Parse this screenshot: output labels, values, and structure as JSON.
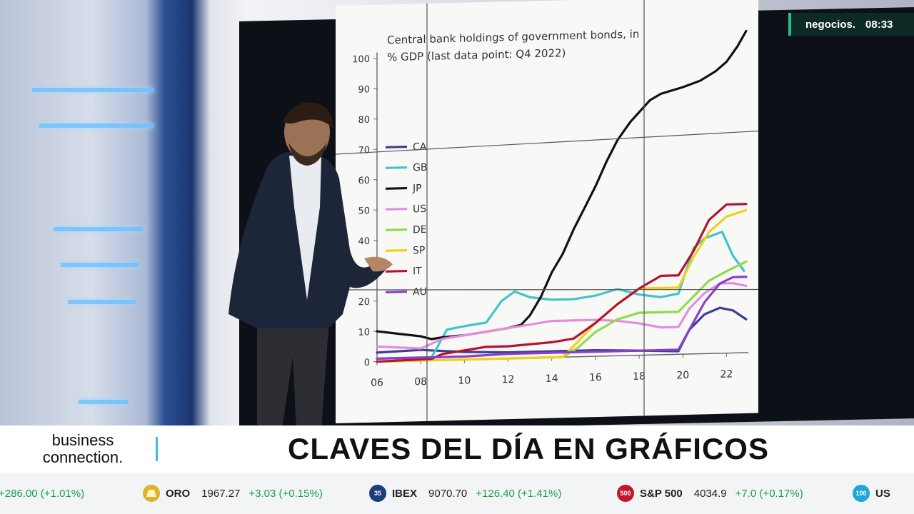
{
  "channel": {
    "name": "negocios.",
    "time": "08:33"
  },
  "program": {
    "logo_line1": "business",
    "logo_line2": "connection.",
    "headline": "CLAVES DEL DÍA EN GRÁFICOS"
  },
  "ticker": [
    {
      "symbol": "",
      "value": "",
      "change": "+286.00 (+1.01%)",
      "badge": "",
      "badge_color": ""
    },
    {
      "symbol": "ORO",
      "value": "1967.27",
      "change": "+3.03 (+0.15%)",
      "badge": "",
      "badge_color": "#e0b22a"
    },
    {
      "symbol": "IBEX",
      "value": "9070.70",
      "change": "+126.40 (+1.41%)",
      "badge": "35",
      "badge_color": "#1c3d7a"
    },
    {
      "symbol": "S&P 500",
      "value": "4034.9",
      "change": "+7.0 (+0.17%)",
      "badge": "500",
      "badge_color": "#c0182a"
    },
    {
      "symbol": "US",
      "value": "",
      "change": "",
      "badge": "100",
      "badge_color": "#1ea7d8"
    }
  ],
  "colors": {
    "ticker_up": "#1a9e4b",
    "accent": "#3bb9f0"
  },
  "chart_data": {
    "type": "line",
    "title": "Central bank holdings of government bonds, in % GDP (last data point: Q4 2022)",
    "xlabel": "",
    "ylabel": "",
    "xlim": [
      2006,
      2023
    ],
    "ylim": [
      0,
      100
    ],
    "x_ticks": [
      "06",
      "08",
      "10",
      "12",
      "14",
      "16",
      "18",
      "20",
      "22"
    ],
    "y_ticks": [
      "0",
      "10",
      "20",
      "30",
      "40",
      "50",
      "60",
      "70",
      "80",
      "90",
      "100"
    ],
    "legend_position": "left",
    "grid": false,
    "series": [
      {
        "name": "CA",
        "color": "#3b3f8f",
        "points": [
          [
            2006,
            3
          ],
          [
            2008,
            3.5
          ],
          [
            2010,
            2.5
          ],
          [
            2012,
            2
          ],
          [
            2014,
            2
          ],
          [
            2016,
            2
          ],
          [
            2018,
            1.5
          ],
          [
            2019.8,
            1
          ],
          [
            2020.3,
            8
          ],
          [
            2021,
            13
          ],
          [
            2021.7,
            15
          ],
          [
            2022.3,
            14
          ],
          [
            2022.9,
            11
          ]
        ]
      },
      {
        "name": "GB",
        "color": "#3fc5c9",
        "points": [
          [
            2006,
            1
          ],
          [
            2008.5,
            1
          ],
          [
            2009.2,
            10
          ],
          [
            2010,
            11
          ],
          [
            2011,
            12
          ],
          [
            2011.7,
            19
          ],
          [
            2012.3,
            22
          ],
          [
            2013,
            20
          ],
          [
            2014,
            19
          ],
          [
            2015,
            19
          ],
          [
            2016,
            20
          ],
          [
            2017,
            22
          ],
          [
            2018,
            20
          ],
          [
            2019,
            19
          ],
          [
            2019.8,
            20
          ],
          [
            2020.5,
            35
          ],
          [
            2021,
            38
          ],
          [
            2021.8,
            40
          ],
          [
            2022.3,
            32
          ],
          [
            2022.8,
            27
          ]
        ]
      },
      {
        "name": "JP",
        "color": "#111111",
        "points": [
          [
            2006,
            10
          ],
          [
            2007,
            9
          ],
          [
            2008,
            8
          ],
          [
            2008.5,
            7
          ],
          [
            2009,
            7.5
          ],
          [
            2010,
            8
          ],
          [
            2011,
            9
          ],
          [
            2012,
            10
          ],
          [
            2012.6,
            11
          ],
          [
            2013,
            14
          ],
          [
            2013.5,
            20
          ],
          [
            2014,
            28
          ],
          [
            2014.5,
            34
          ],
          [
            2015,
            42
          ],
          [
            2015.5,
            49
          ],
          [
            2016,
            56
          ],
          [
            2016.5,
            64
          ],
          [
            2017,
            71
          ],
          [
            2017.6,
            77
          ],
          [
            2018.5,
            84
          ],
          [
            2019,
            86
          ],
          [
            2020,
            88
          ],
          [
            2020.8,
            90
          ],
          [
            2021.5,
            93
          ],
          [
            2022,
            96
          ],
          [
            2022.5,
            101
          ],
          [
            2022.9,
            106
          ]
        ]
      },
      {
        "name": "US",
        "color": "#e38de0",
        "points": [
          [
            2006,
            5
          ],
          [
            2008,
            4
          ],
          [
            2009,
            7
          ],
          [
            2010,
            8
          ],
          [
            2011,
            9
          ],
          [
            2012,
            10
          ],
          [
            2013,
            11
          ],
          [
            2014,
            12
          ],
          [
            2015,
            12
          ],
          [
            2016,
            12
          ],
          [
            2017,
            11.5
          ],
          [
            2018,
            10.5
          ],
          [
            2019,
            9
          ],
          [
            2019.8,
            9
          ],
          [
            2020.3,
            15
          ],
          [
            2021,
            20
          ],
          [
            2021.7,
            23
          ],
          [
            2022.3,
            23
          ],
          [
            2022.9,
            22
          ]
        ]
      },
      {
        "name": "DE",
        "color": "#8fdc4a",
        "points": [
          [
            2006,
            0
          ],
          [
            2014.5,
            0
          ],
          [
            2015.2,
            3
          ],
          [
            2016,
            8
          ],
          [
            2017,
            12
          ],
          [
            2018,
            14
          ],
          [
            2019,
            14
          ],
          [
            2019.8,
            14
          ],
          [
            2020.5,
            19
          ],
          [
            2021.2,
            24
          ],
          [
            2022,
            27
          ],
          [
            2022.9,
            30
          ]
        ]
      },
      {
        "name": "SP",
        "color": "#f2cf19",
        "points": [
          [
            2006,
            0
          ],
          [
            2014.5,
            0
          ],
          [
            2015.2,
            5
          ],
          [
            2016,
            11
          ],
          [
            2017,
            17
          ],
          [
            2018,
            22
          ],
          [
            2019,
            22
          ],
          [
            2019.8,
            22
          ],
          [
            2020.5,
            32
          ],
          [
            2021.2,
            40
          ],
          [
            2022,
            45
          ],
          [
            2022.9,
            47
          ]
        ]
      },
      {
        "name": "IT",
        "color": "#b4122e",
        "points": [
          [
            2006,
            0
          ],
          [
            2008.5,
            0.5
          ],
          [
            2009,
            2
          ],
          [
            2010,
            3
          ],
          [
            2011,
            4
          ],
          [
            2012,
            4
          ],
          [
            2013,
            4.5
          ],
          [
            2014,
            5
          ],
          [
            2015,
            6
          ],
          [
            2016,
            11
          ],
          [
            2017,
            17
          ],
          [
            2018,
            22
          ],
          [
            2019,
            26
          ],
          [
            2019.8,
            26
          ],
          [
            2020.5,
            34
          ],
          [
            2021.2,
            44
          ],
          [
            2022,
            49
          ],
          [
            2022.9,
            49
          ]
        ]
      },
      {
        "name": "AU",
        "color": "#8a3fc8",
        "points": [
          [
            2006,
            1
          ],
          [
            2008,
            1
          ],
          [
            2010,
            1
          ],
          [
            2012,
            1.5
          ],
          [
            2014,
            1.5
          ],
          [
            2016,
            1.5
          ],
          [
            2018,
            1.5
          ],
          [
            2019.8,
            1.5
          ],
          [
            2020.3,
            8
          ],
          [
            2021,
            17
          ],
          [
            2021.7,
            23
          ],
          [
            2022.3,
            25
          ],
          [
            2022.9,
            25
          ]
        ]
      }
    ]
  }
}
